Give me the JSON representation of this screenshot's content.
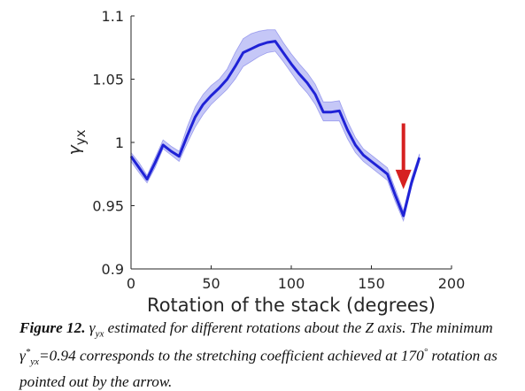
{
  "chart_data": {
    "type": "line",
    "xlabel": "Rotation of the stack (degrees)",
    "ylabel_main": "γ",
    "ylabel_sub": "yx",
    "xlim": [
      0,
      200
    ],
    "ylim": [
      0.9,
      1.1
    ],
    "xticks": [
      "0",
      "50",
      "100",
      "150",
      "200"
    ],
    "xtick_values": [
      0,
      50,
      100,
      150,
      200
    ],
    "yticks": [
      "0.9",
      "0.95",
      "1",
      "1.05",
      "1.1"
    ],
    "ytick_values": [
      0.9,
      0.95,
      1.0,
      1.05,
      1.1
    ],
    "grid": false,
    "series": [
      {
        "x": [
          0,
          5,
          10,
          15,
          20,
          25,
          30,
          35,
          40,
          45,
          50,
          55,
          60,
          65,
          70,
          75,
          80,
          85,
          90,
          95,
          100,
          105,
          110,
          115,
          120,
          125,
          130,
          135,
          140,
          145,
          150,
          155,
          160,
          165,
          170,
          175,
          180
        ],
        "y": [
          0.989,
          0.98,
          0.971,
          0.984,
          0.998,
          0.993,
          0.989,
          1.005,
          1.02,
          1.03,
          1.037,
          1.043,
          1.05,
          1.06,
          1.071,
          1.074,
          1.077,
          1.079,
          1.08,
          1.071,
          1.062,
          1.054,
          1.047,
          1.038,
          1.024,
          1.024,
          1.025,
          1.01,
          0.998,
          0.99,
          0.985,
          0.98,
          0.975,
          0.958,
          0.942,
          0.968,
          0.988
        ],
        "lower": [
          0.985,
          0.976,
          0.968,
          0.98,
          0.995,
          0.99,
          0.985,
          0.999,
          1.012,
          1.022,
          1.03,
          1.036,
          1.042,
          1.05,
          1.06,
          1.064,
          1.068,
          1.071,
          1.072,
          1.064,
          1.055,
          1.046,
          1.039,
          1.03,
          1.017,
          1.017,
          1.017,
          1.003,
          0.992,
          0.985,
          0.98,
          0.975,
          0.97,
          0.953,
          0.938,
          0.965,
          0.985
        ],
        "upper": [
          0.992,
          0.984,
          0.974,
          0.988,
          1.002,
          0.997,
          0.993,
          1.012,
          1.028,
          1.038,
          1.045,
          1.05,
          1.058,
          1.071,
          1.082,
          1.086,
          1.088,
          1.089,
          1.089,
          1.079,
          1.07,
          1.062,
          1.055,
          1.046,
          1.032,
          1.032,
          1.033,
          1.017,
          1.004,
          0.995,
          0.99,
          0.985,
          0.98,
          0.963,
          0.946,
          0.972,
          0.991
        ]
      }
    ],
    "annotation": {
      "type": "arrow",
      "x": 170,
      "y_from": 1.015,
      "y_to": 0.963,
      "color": "#d62020"
    },
    "line_color": "#1f22d6",
    "band_color": "#8c8ff0"
  },
  "caption": {
    "label": "Figure 12.",
    "symbol": "γ",
    "symbol_sub": "yx",
    "text1": " estimated for different rotations about the Z axis. The minimum ",
    "min_symbol": "γ",
    "min_sup": "*",
    "min_sub": "yx",
    "text2": "=0.94 corresponds to the stretching coefficient achieved at 170",
    "degree": "°",
    "text3": " rotation as pointed out by the arrow."
  }
}
